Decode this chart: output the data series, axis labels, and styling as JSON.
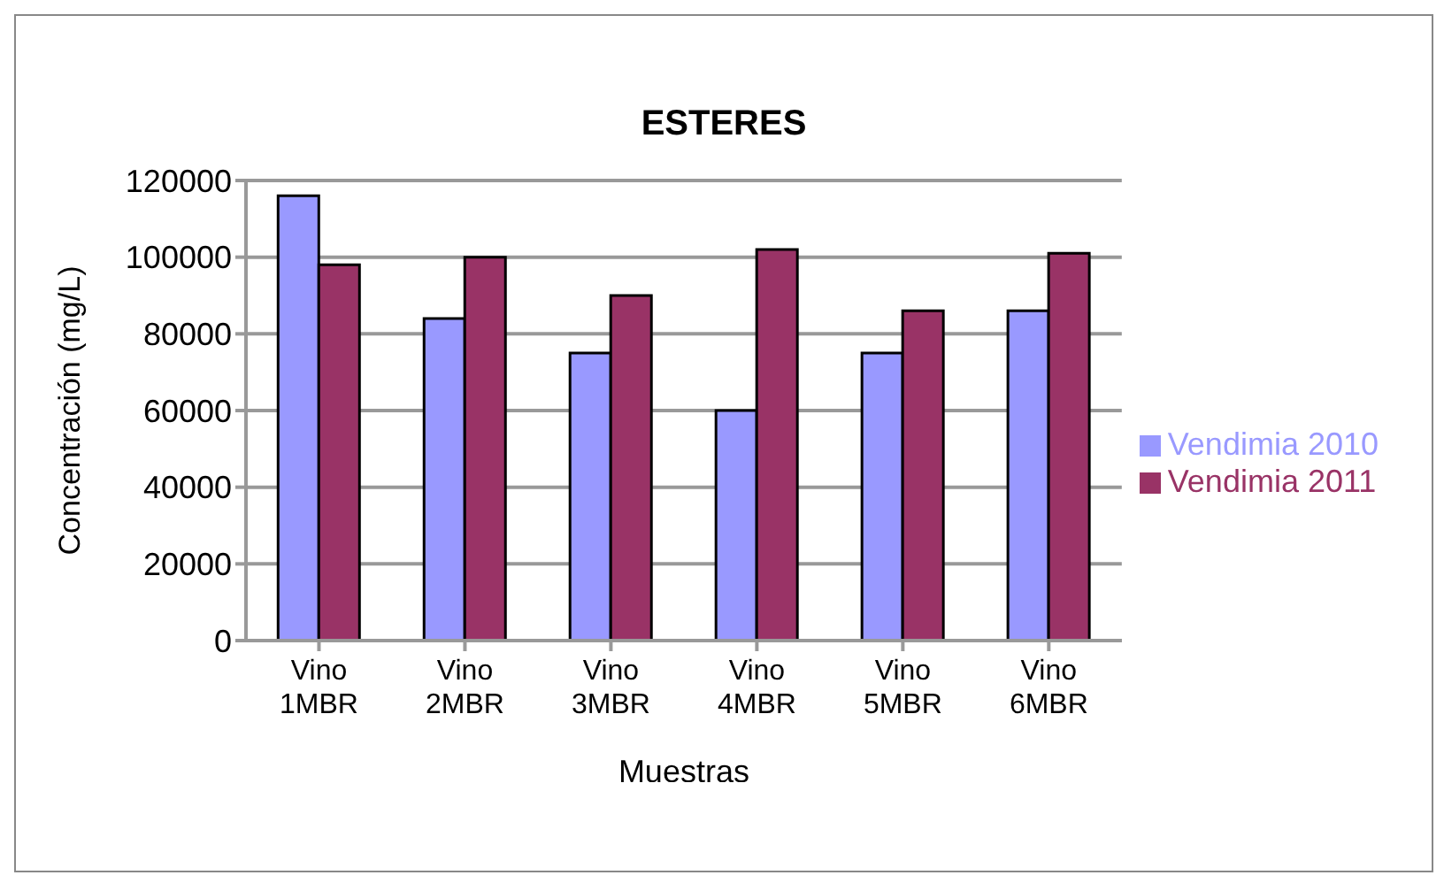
{
  "chart_data": {
    "type": "bar",
    "title": "ESTERES",
    "xlabel": "Muestras",
    "ylabel": "Concentración (mg/L)",
    "categories": [
      "Vino 1MBR",
      "Vino 2MBR",
      "Vino 3MBR",
      "Vino 4MBR",
      "Vino 5MBR",
      "Vino 6MBR"
    ],
    "series": [
      {
        "name": "Vendimia 2010",
        "color": "#9999ff",
        "values": [
          116000,
          84000,
          75000,
          60000,
          75000,
          86000
        ]
      },
      {
        "name": "Vendimia 2011",
        "color": "#993366",
        "values": [
          98000,
          100000,
          90000,
          102000,
          86000,
          101000
        ]
      }
    ],
    "ylim": [
      0,
      120000
    ],
    "yticks": [
      0,
      20000,
      40000,
      60000,
      80000,
      100000,
      120000
    ],
    "grid": "y",
    "legend": "right"
  }
}
